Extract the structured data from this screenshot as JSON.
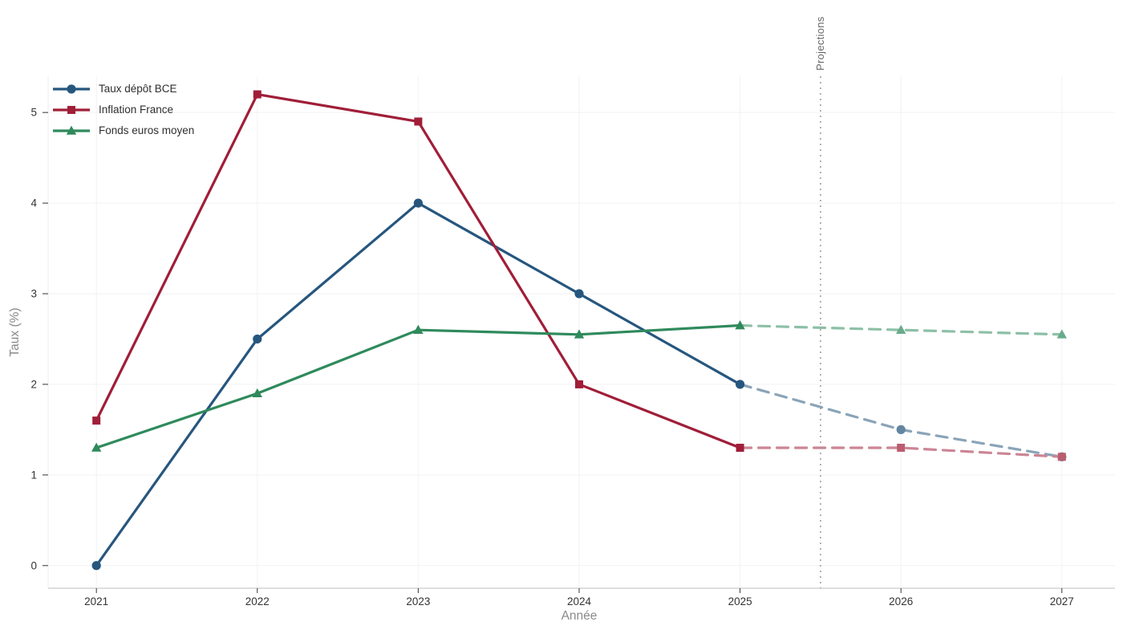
{
  "chart_data": {
    "type": "line",
    "xlabel": "Année",
    "ylabel": "Taux (%)",
    "x": [
      2021,
      2022,
      2023,
      2024,
      2025,
      2026,
      2027
    ],
    "yticks": [
      0,
      1,
      2,
      3,
      4,
      5
    ],
    "xlim": [
      2020.7,
      2027.33
    ],
    "ylim": [
      -0.25,
      5.4
    ],
    "grid": true,
    "legend_position": "top-left",
    "projection": {
      "label": "Projections",
      "boundary_x": 2025.5,
      "solid_until": 2025,
      "line_color": "#999999"
    },
    "series": [
      {
        "name": "Taux dépôt BCE",
        "marker": "circle",
        "color": "#26567E",
        "projected_color": "#8AA4B8",
        "values": [
          0.0,
          2.5,
          4.0,
          3.0,
          2.0,
          1.5,
          1.2
        ]
      },
      {
        "name": "Inflation France",
        "marker": "square",
        "color": "#A01E38",
        "projected_color": "#CC8594",
        "values": [
          1.6,
          5.2,
          4.9,
          2.0,
          1.3,
          1.3,
          1.2
        ]
      },
      {
        "name": "Fonds euros moyen",
        "marker": "triangle",
        "color": "#2F8A5C",
        "projected_color": "#8DC0A6",
        "values": [
          1.3,
          1.9,
          2.6,
          2.55,
          2.65,
          2.6,
          2.55
        ]
      }
    ]
  },
  "colors": {
    "background": "#ffffff",
    "grid": "#f2f2f2",
    "left_spine": "#ececec",
    "axis_line": "#cccccc",
    "tick_mark": "#333333",
    "tick_text": "#333333",
    "axis_title_text": "#8a8a8a",
    "projection_text": "#666666"
  }
}
